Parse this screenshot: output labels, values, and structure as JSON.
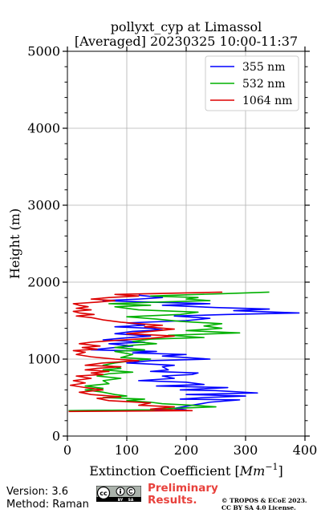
{
  "chart_data": {
    "type": "line",
    "title": "pollyxt_cyp at Limassol",
    "subtitle": "[Averaged] 20230325 10:00-11:37",
    "xlabel_prefix": "Extinction Coefficient [",
    "xlabel_unit_base": "Mm",
    "xlabel_unit_exp": "−1",
    "xlabel_suffix": "]",
    "ylabel": "Height (m)",
    "xlim": [
      0,
      400
    ],
    "ylim": [
      0,
      5000
    ],
    "xticks": [
      "0",
      "100",
      "200",
      "300",
      "400"
    ],
    "yticks": [
      "0",
      "1000",
      "2000",
      "3000",
      "4000",
      "5000"
    ],
    "grid": true,
    "legend_position": "top-right",
    "series": [
      {
        "name": "355 nm",
        "color": "#0000ff",
        "points": [
          [
            2,
            330
          ],
          [
            200,
            340
          ],
          [
            180,
            360
          ],
          [
            210,
            400
          ],
          [
            240,
            440
          ],
          [
            290,
            470
          ],
          [
            190,
            480
          ],
          [
            230,
            500
          ],
          [
            300,
            520
          ],
          [
            200,
            540
          ],
          [
            320,
            560
          ],
          [
            250,
            590
          ],
          [
            190,
            600
          ],
          [
            270,
            630
          ],
          [
            150,
            650
          ],
          [
            230,
            670
          ],
          [
            200,
            700
          ],
          [
            120,
            720
          ],
          [
            180,
            750
          ],
          [
            160,
            780
          ],
          [
            210,
            800
          ],
          [
            220,
            820
          ],
          [
            140,
            840
          ],
          [
            170,
            860
          ],
          [
            160,
            900
          ],
          [
            180,
            920
          ],
          [
            100,
            950
          ],
          [
            140,
            980
          ],
          [
            240,
            1000
          ],
          [
            160,
            1040
          ],
          [
            200,
            1060
          ],
          [
            110,
            1080
          ],
          [
            150,
            1100
          ],
          [
            40,
            1120
          ],
          [
            80,
            1150
          ],
          [
            110,
            1170
          ],
          [
            70,
            1200
          ],
          [
            130,
            1220
          ],
          [
            60,
            1250
          ],
          [
            90,
            1270
          ],
          [
            140,
            1300
          ],
          [
            80,
            1330
          ],
          [
            110,
            1360
          ],
          [
            160,
            1380
          ],
          [
            140,
            1400
          ],
          [
            80,
            1420
          ],
          [
            130,
            1440
          ],
          [
            100,
            1470
          ],
          [
            200,
            1500
          ],
          [
            240,
            1530
          ],
          [
            180,
            1560
          ],
          [
            270,
            1580
          ],
          [
            390,
            1600
          ],
          [
            280,
            1630
          ],
          [
            340,
            1650
          ],
          [
            250,
            1670
          ],
          [
            160,
            1700
          ],
          [
            240,
            1720
          ],
          [
            140,
            1740
          ],
          [
            60,
            1760
          ],
          [
            120,
            1780
          ],
          [
            160,
            1800
          ],
          [
            120,
            1830
          ]
        ]
      },
      {
        "name": "532 nm",
        "color": "#00b000",
        "points": [
          [
            2,
            330
          ],
          [
            140,
            340
          ],
          [
            180,
            360
          ],
          [
            250,
            380
          ],
          [
            210,
            400
          ],
          [
            160,
            420
          ],
          [
            140,
            440
          ],
          [
            100,
            460
          ],
          [
            130,
            480
          ],
          [
            60,
            500
          ],
          [
            100,
            520
          ],
          [
            80,
            540
          ],
          [
            60,
            570
          ],
          [
            30,
            600
          ],
          [
            60,
            620
          ],
          [
            30,
            650
          ],
          [
            70,
            680
          ],
          [
            60,
            720
          ],
          [
            90,
            750
          ],
          [
            50,
            780
          ],
          [
            70,
            810
          ],
          [
            110,
            830
          ],
          [
            60,
            860
          ],
          [
            90,
            880
          ],
          [
            80,
            900
          ],
          [
            60,
            920
          ],
          [
            80,
            950
          ],
          [
            110,
            980
          ],
          [
            140,
            1000
          ],
          [
            90,
            1020
          ],
          [
            110,
            1060
          ],
          [
            80,
            1100
          ],
          [
            130,
            1120
          ],
          [
            80,
            1150
          ],
          [
            110,
            1180
          ],
          [
            150,
            1200
          ],
          [
            110,
            1230
          ],
          [
            140,
            1260
          ],
          [
            230,
            1280
          ],
          [
            170,
            1310
          ],
          [
            290,
            1340
          ],
          [
            200,
            1370
          ],
          [
            260,
            1400
          ],
          [
            230,
            1430
          ],
          [
            260,
            1460
          ],
          [
            190,
            1490
          ],
          [
            150,
            1520
          ],
          [
            100,
            1550
          ],
          [
            190,
            1580
          ],
          [
            220,
            1610
          ],
          [
            120,
            1640
          ],
          [
            80,
            1680
          ],
          [
            140,
            1700
          ],
          [
            70,
            1720
          ],
          [
            150,
            1740
          ],
          [
            240,
            1760
          ],
          [
            200,
            1780
          ],
          [
            220,
            1800
          ],
          [
            140,
            1820
          ],
          [
            260,
            1850
          ],
          [
            340,
            1870
          ]
        ]
      },
      {
        "name": "1064 nm",
        "color": "#dd0000",
        "points": [
          [
            2,
            320
          ],
          [
            210,
            330
          ],
          [
            140,
            350
          ],
          [
            180,
            380
          ],
          [
            120,
            400
          ],
          [
            140,
            430
          ],
          [
            70,
            460
          ],
          [
            50,
            490
          ],
          [
            90,
            510
          ],
          [
            40,
            540
          ],
          [
            20,
            570
          ],
          [
            60,
            600
          ],
          [
            30,
            630
          ],
          [
            5,
            660
          ],
          [
            30,
            690
          ],
          [
            10,
            720
          ],
          [
            40,
            750
          ],
          [
            15,
            780
          ],
          [
            60,
            800
          ],
          [
            40,
            820
          ],
          [
            70,
            840
          ],
          [
            30,
            860
          ],
          [
            50,
            880
          ],
          [
            90,
            900
          ],
          [
            30,
            920
          ],
          [
            60,
            950
          ],
          [
            120,
            980
          ],
          [
            80,
            1000
          ],
          [
            40,
            1030
          ],
          [
            15,
            1060
          ],
          [
            30,
            1090
          ],
          [
            10,
            1110
          ],
          [
            50,
            1130
          ],
          [
            25,
            1150
          ],
          [
            55,
            1170
          ],
          [
            20,
            1200
          ],
          [
            40,
            1220
          ],
          [
            75,
            1240
          ],
          [
            140,
            1270
          ],
          [
            180,
            1300
          ],
          [
            100,
            1330
          ],
          [
            140,
            1360
          ],
          [
            180,
            1390
          ],
          [
            130,
            1420
          ],
          [
            160,
            1440
          ],
          [
            120,
            1460
          ],
          [
            90,
            1480
          ],
          [
            60,
            1510
          ],
          [
            40,
            1540
          ],
          [
            15,
            1560
          ],
          [
            45,
            1580
          ],
          [
            20,
            1600
          ],
          [
            10,
            1620
          ],
          [
            40,
            1640
          ],
          [
            15,
            1660
          ],
          [
            35,
            1680
          ],
          [
            20,
            1700
          ],
          [
            10,
            1720
          ],
          [
            50,
            1740
          ],
          [
            80,
            1760
          ],
          [
            40,
            1780
          ],
          [
            70,
            1800
          ],
          [
            120,
            1820
          ],
          [
            80,
            1840
          ],
          [
            260,
            1870
          ],
          [
            200,
            1860
          ],
          [
            140,
            1850
          ]
        ]
      }
    ]
  },
  "footer": {
    "version": "Version: 3.6",
    "method": "Method: Raman",
    "preliminary_line1": "Preliminary",
    "preliminary_line2": "Results.",
    "copyright": "© TROPOS & ECoE 2023.",
    "license": "CC BY SA 4.0 License.",
    "cc_badge_labels": [
      "BY",
      "SA"
    ]
  }
}
